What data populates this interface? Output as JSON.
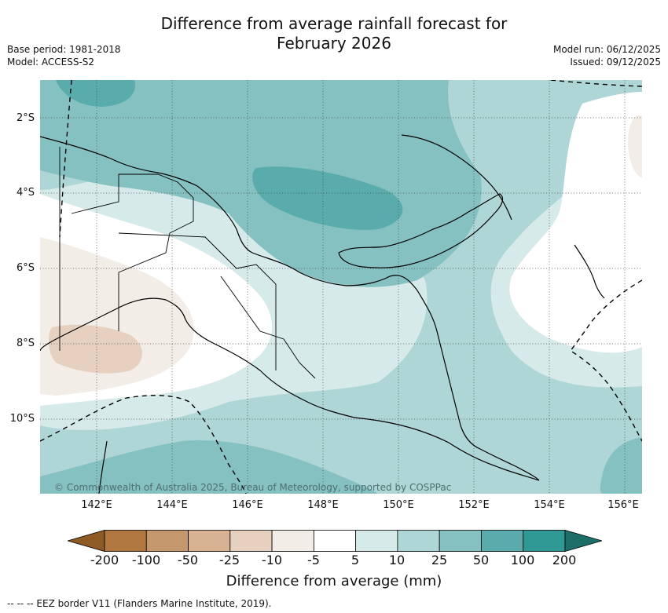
{
  "title_line1": "Difference from average rainfall forecast for",
  "title_line2": "February 2026",
  "base_period": "Base period: 1981-2018",
  "model": "Model: ACCESS-S2",
  "model_run": "Model run: 06/12/2025",
  "issued": "Issued: 09/12/2025",
  "copyright": "© Commonwealth of Australia 2025, Bureau of Meteorology, supported by COSPPac",
  "lat_labels": [
    "2°S",
    "4°S",
    "6°S",
    "8°S",
    "10°S"
  ],
  "lon_labels": [
    "142°E",
    "144°E",
    "146°E",
    "148°E",
    "150°E",
    "152°E",
    "154°E",
    "156°E"
  ],
  "colorbar": {
    "label": "Difference from average (mm)",
    "ticks": [
      "-200",
      "-100",
      "-50",
      "-25",
      "-10",
      "-5",
      "5",
      "10",
      "25",
      "50",
      "100",
      "200"
    ],
    "colors": [
      "#8e5a25",
      "#b07840",
      "#c5976c",
      "#d6b293",
      "#e6d1c0",
      "#f2ede6",
      "#ffffff",
      "#d6eae9",
      "#afd6d6",
      "#86c1c1",
      "#5aabab",
      "#2f9a95",
      "#1d6e69"
    ]
  },
  "footnote": "-- -- -- EEZ border V11 (Flanders Marine Institute, 2019)."
}
